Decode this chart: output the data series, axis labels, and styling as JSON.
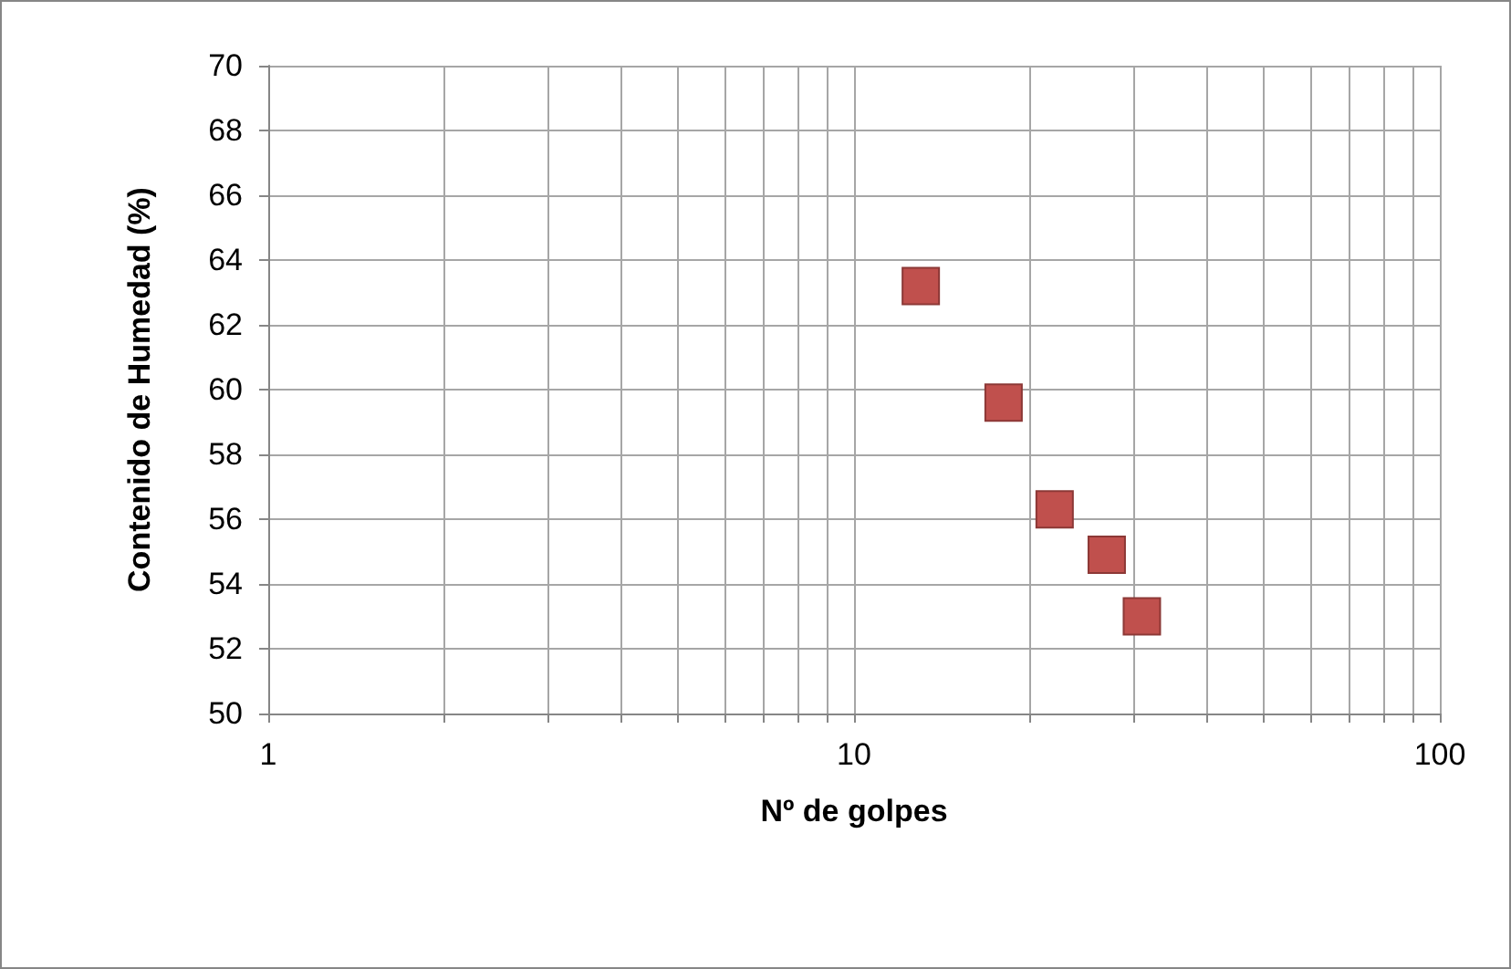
{
  "chart_data": {
    "type": "scatter",
    "xlabel": "Nº de golpes",
    "ylabel": "Contenido de Humedad (%)",
    "x": [
      13,
      18,
      22,
      27,
      31
    ],
    "series": [
      {
        "color": "#c0504d",
        "values": [
          63.2,
          59.6,
          56.3,
          54.9,
          53.0
        ]
      }
    ],
    "log": "x",
    "xlim": [
      1,
      100
    ],
    "ylim": [
      50,
      70
    ],
    "xticks": [
      1,
      {
        "value": 2,
        "label": null
      },
      {
        "value": 3,
        "label": null
      },
      {
        "value": 4,
        "label": null
      },
      {
        "value": 5,
        "label": null
      },
      {
        "value": 6,
        "label": null
      },
      {
        "value": 7,
        "label": null
      },
      {
        "value": 8,
        "label": null
      },
      {
        "value": 9,
        "label": null
      },
      10,
      {
        "value": 20,
        "label": null
      },
      {
        "value": 30,
        "label": null
      },
      {
        "value": 40,
        "label": null
      },
      {
        "value": 50,
        "label": null
      },
      {
        "value": 60,
        "label": null
      },
      {
        "value": 70,
        "label": null
      },
      {
        "value": 80,
        "label": null
      },
      {
        "value": 90,
        "label": null
      },
      100
    ],
    "yticks": [
      50,
      52,
      54,
      56,
      58,
      60,
      62,
      64,
      66,
      68,
      70
    ],
    "grid": true,
    "marker": "square"
  }
}
